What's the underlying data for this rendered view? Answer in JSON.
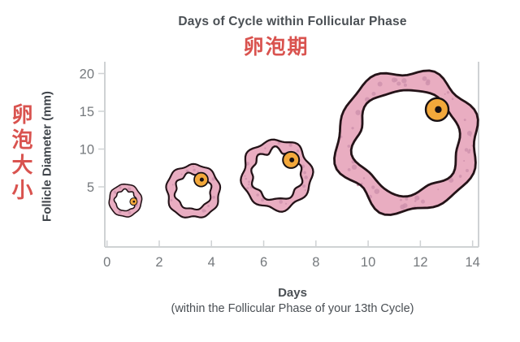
{
  "title": {
    "main": "Days of Cycle within Follicular Phase",
    "subtitle_zh": "卵泡期"
  },
  "y_axis": {
    "label_zh": "卵泡大小",
    "label": "Follicle Diameter (mm)",
    "ticks": [
      5,
      10,
      15,
      20
    ]
  },
  "x_axis": {
    "ticks": [
      0,
      2,
      4,
      6,
      8,
      10,
      12,
      14
    ],
    "label": "Days",
    "sublabel": "(within the Follicular Phase of your 13th Cycle)"
  },
  "colors": {
    "accent_red": "#d9534f",
    "title_gray": "#4a4f54",
    "axis_text": "#75797d",
    "axis_line": "#cfd2d4",
    "follicle_fill": "#e9adc1",
    "follicle_speckle": "#cf92ad",
    "follicle_outline": "#241318",
    "oocyte_fill": "#f3a83b",
    "oocyte_dark": "#171013"
  },
  "chart_data": {
    "type": "scatter",
    "title": "Days of Cycle within Follicular Phase",
    "title_zh": "卵泡期",
    "xlabel": "Days (within the Follicular Phase of your 13th Cycle)",
    "ylabel": "Follicle Diameter (mm)",
    "ylabel_zh": "卵泡大小",
    "xlim": [
      0,
      14
    ],
    "ylim": [
      0,
      20
    ],
    "x_ticks": [
      0,
      2,
      4,
      6,
      8,
      10,
      12,
      14
    ],
    "y_ticks": [
      5,
      10,
      15,
      20
    ],
    "grid": false,
    "legend": false,
    "points": [
      {
        "day": 0.7,
        "diameter_mm": 4.3,
        "center_mm": 3.2
      },
      {
        "day": 3.3,
        "diameter_mm": 7.1,
        "center_mm": 4.4
      },
      {
        "day": 6.5,
        "diameter_mm": 9.2,
        "center_mm": 6.6
      },
      {
        "day": 11.5,
        "diameter_mm": 18.7,
        "center_mm": 11.0
      }
    ],
    "point_description": "Each data point is drawn as a follicle illustration (pink granulosa ring with an orange oocyte) whose size encodes follicle diameter in mm"
  }
}
